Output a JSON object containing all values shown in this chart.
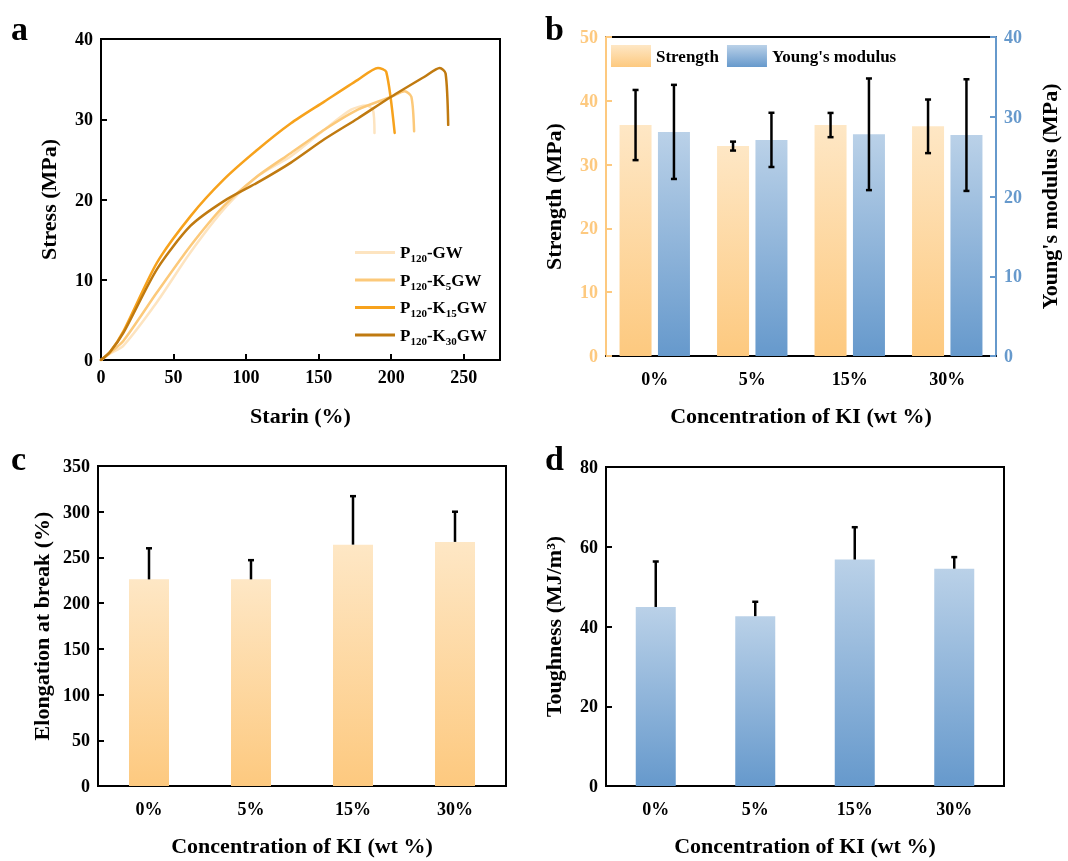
{
  "chart_data": [
    {
      "type": "line",
      "title": "a",
      "xlabel": "Starin (%)",
      "ylabel": "Stress (MPa)",
      "xlim": [
        0,
        275
      ],
      "xticks": [
        0,
        50,
        100,
        150,
        200,
        250
      ],
      "ylim": [
        0,
        40
      ],
      "yticks": [
        0,
        10,
        20,
        30,
        40
      ],
      "grid": false,
      "legend": "bottom right",
      "marker": "none",
      "line_style": "solid",
      "series": [
        {
          "name": "P$_{120}$-GW",
          "color": "#fde4c0",
          "x": [
            0,
            6.2,
            15.5,
            38.5,
            61.6,
            84.7,
            107.8,
            130.9,
            153.9,
            172.4,
            182.8,
            187.4,
            188.5
          ],
          "values": [
            0,
            0.8,
            1.8,
            7.2,
            13.4,
            18.8,
            22.9,
            25.4,
            28.7,
            31.2,
            31.7,
            31.2,
            28.3
          ]
        },
        {
          "name": "P$_{120}$-K$_{5}$GW",
          "color": "#fcc97a",
          "x": [
            0,
            6.2,
            15.5,
            38.5,
            61.6,
            84.7,
            107.8,
            130.9,
            153.9,
            177,
            200,
            209.3,
            213.9,
            215.8
          ],
          "values": [
            0,
            0.9,
            2.4,
            8.4,
            14.2,
            19.2,
            22.9,
            25.8,
            28.7,
            31.2,
            32.8,
            33.5,
            32.8,
            28.5
          ]
        },
        {
          "name": "P$_{120}$-K$_{15}$GW",
          "color": "#f7a21c",
          "x": [
            0,
            6.2,
            15.5,
            38.5,
            61.6,
            84.7,
            107.8,
            130.9,
            153.9,
            177,
            190.9,
            196.6,
            202.4
          ],
          "values": [
            0,
            1,
            3.6,
            12.1,
            17.9,
            22.5,
            26.2,
            29.5,
            32.2,
            34.9,
            36.4,
            35.9,
            28.3
          ]
        },
        {
          "name": "P$_{120}$-K$_{30}$GW",
          "color": "#c07a10",
          "x": [
            0,
            6.2,
            15.5,
            38.5,
            61.6,
            84.7,
            107.8,
            130.9,
            153.9,
            177,
            200,
            223,
            233.5,
            237.5,
            239.3
          ],
          "values": [
            0,
            1,
            3.4,
            11.3,
            16.7,
            19.8,
            22.1,
            24.6,
            27.5,
            30.1,
            32.8,
            35.3,
            36.4,
            35.7,
            29.3
          ]
        }
      ]
    },
    {
      "type": "bar",
      "title": "b",
      "xlabel": "Concentration of KI (wt %)",
      "ylabel": "Strength (MPa)",
      "y2label": "Young's modulus (MPa)",
      "categories": [
        "0%",
        "5%",
        "15%",
        "30%"
      ],
      "ylim": [
        0,
        50
      ],
      "yticks": [
        0,
        10,
        20,
        30,
        40,
        50
      ],
      "y2lim": [
        0,
        40
      ],
      "y2ticks": [
        0,
        10,
        20,
        30,
        40
      ],
      "grid": false,
      "legend": "top left",
      "series": [
        {
          "name": "Strength",
          "color": "#fdc97f",
          "values": [
            36.2,
            32.9,
            36.2,
            36.0
          ],
          "errors": [
            5.5,
            0.7,
            1.9,
            4.2
          ]
        },
        {
          "name": "Young's modulus",
          "color": "#6699cc",
          "axis": "y2",
          "values": [
            28.1,
            27.1,
            27.8,
            27.7
          ],
          "errors": [
            5.9,
            3.4,
            7.0,
            7.0
          ]
        }
      ]
    },
    {
      "type": "bar",
      "title": "c",
      "xlabel": "Concentration of KI (wt %)",
      "ylabel": "Elongation at break (%)",
      "categories": [
        "0%",
        "5%",
        "15%",
        "30%"
      ],
      "ylim": [
        0,
        350
      ],
      "yticks": [
        0,
        50,
        100,
        150,
        200,
        250,
        300,
        350
      ],
      "grid": false,
      "series": [
        {
          "color": "#fdc97f",
          "values": [
            226,
            226,
            264,
            267
          ],
          "errors": [
            [
              226,
              260
            ],
            [
              226,
              247
            ],
            [
              264,
              317
            ],
            [
              267,
              300
            ]
          ]
        }
      ]
    },
    {
      "type": "bar",
      "title": "d",
      "xlabel": "Concentration of KI (wt %)",
      "ylabel": "Toughness (MJ/m³)",
      "categories": [
        "0%",
        "5%",
        "15%",
        "30%"
      ],
      "ylim": [
        0,
        80
      ],
      "yticks": [
        0,
        20,
        40,
        60,
        80
      ],
      "grid": false,
      "series": [
        {
          "color": "#6699cc",
          "values": [
            44.9,
            42.6,
            56.8,
            54.5
          ],
          "errors": [
            [
              44.9,
              56.3
            ],
            [
              42.6,
              46.2
            ],
            [
              56.8,
              64.9
            ],
            [
              54.5,
              57.4
            ]
          ]
        }
      ]
    }
  ]
}
